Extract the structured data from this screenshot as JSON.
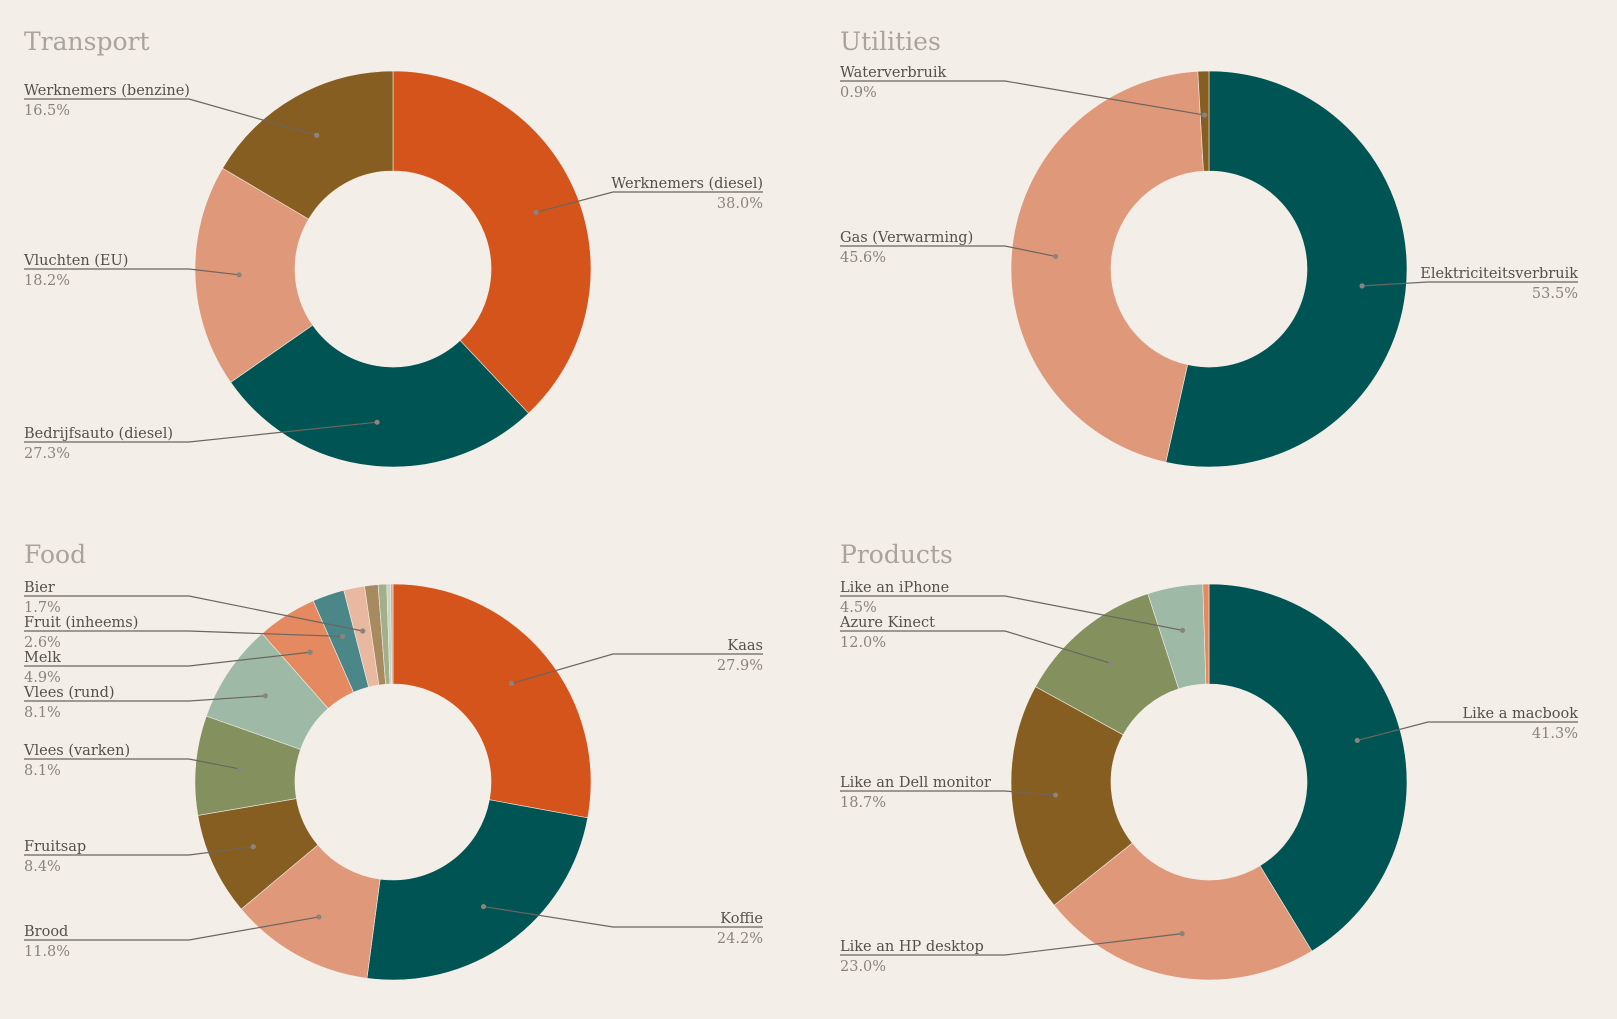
{
  "chart_data": [
    {
      "type": "pie",
      "title": "Transport",
      "categories": [
        "Werknemers (diesel)",
        "Bedrijfsauto (diesel)",
        "Vluchten (EU)",
        "Werknemers (benzine)"
      ],
      "values": [
        38.0,
        27.3,
        18.2,
        16.5
      ],
      "value_labels": [
        "38.0%",
        "27.3%",
        "18.2%",
        "16.5%"
      ],
      "colors": [
        "#d4541c",
        "#005554",
        "#df9879",
        "#875e21"
      ],
      "donut": true
    },
    {
      "type": "pie",
      "title": "Utilities",
      "categories": [
        "Elektriciteitsverbruik",
        "Gas (Verwarming)",
        "Waterverbruik"
      ],
      "values": [
        53.5,
        45.6,
        0.9
      ],
      "value_labels": [
        "53.5%",
        "45.6%",
        "0.9%"
      ],
      "colors": [
        "#005554",
        "#df9879",
        "#875e21"
      ],
      "donut": true
    },
    {
      "type": "pie",
      "title": "Food",
      "categories": [
        "Kaas",
        "Koffie",
        "Brood",
        "Fruitsap",
        "Vlees (varken)",
        "Vlees (rund)",
        "Melk",
        "Fruit (inheems)",
        "Bier",
        "",
        "",
        "",
        ""
      ],
      "values": [
        27.9,
        24.2,
        11.8,
        8.4,
        8.1,
        8.1,
        4.9,
        2.6,
        1.7,
        1.1,
        0.7,
        0.3,
        0.2
      ],
      "value_labels": [
        "27.9%",
        "24.2%",
        "11.8%",
        "8.4%",
        "8.1%",
        "8.1%",
        "4.9%",
        "2.6%",
        "1.7%",
        "",
        "",
        "",
        ""
      ],
      "colors": [
        "#d4541c",
        "#005554",
        "#df9879",
        "#875e21",
        "#84915f",
        "#9ebaa7",
        "#e48960",
        "#4b8789",
        "#e9b8a1",
        "#a78a5f",
        "#a2b08a",
        "#c8d3c3",
        "#e1a389"
      ],
      "donut": true
    },
    {
      "type": "pie",
      "title": "Products",
      "categories": [
        "Like a macbook",
        "Like an HP desktop",
        "Like an Dell monitor",
        "Azure Kinect",
        "Like an iPhone",
        ""
      ],
      "values": [
        41.3,
        23.0,
        18.7,
        12.0,
        4.5,
        0.5
      ],
      "value_labels": [
        "41.3%",
        "23.0%",
        "18.7%",
        "12.0%",
        "4.5%",
        ""
      ],
      "colors": [
        "#005554",
        "#df9879",
        "#875e21",
        "#84915f",
        "#9ebaa7",
        "#e48960"
      ],
      "donut": true
    }
  ]
}
